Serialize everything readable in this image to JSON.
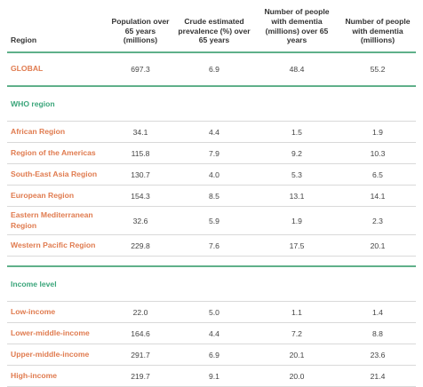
{
  "table": {
    "headers": [
      "Region",
      "Population over 65 years (millions)",
      "Crude estimated prevalence (%) over 65 years",
      "Number of people with dementia (millions) over 65 years",
      "Number of people with dementia (millions)"
    ],
    "global": {
      "label": "GLOBAL",
      "values": [
        "697.3",
        "6.9",
        "48.4",
        "55.2"
      ]
    },
    "who_section": {
      "title": "WHO region",
      "rows": [
        {
          "label": "African Region",
          "values": [
            "34.1",
            "4.4",
            "1.5",
            "1.9"
          ]
        },
        {
          "label": "Region of the Americas",
          "values": [
            "115.8",
            "7.9",
            "9.2",
            "10.3"
          ]
        },
        {
          "label": "South-East Asia Region",
          "values": [
            "130.7",
            "4.0",
            "5.3",
            "6.5"
          ]
        },
        {
          "label": "European Region",
          "values": [
            "154.3",
            "8.5",
            "13.1",
            "14.1"
          ]
        },
        {
          "label": "Eastern Mediterranean Region",
          "values": [
            "32.6",
            "5.9",
            "1.9",
            "2.3"
          ]
        },
        {
          "label": "Western Pacific Region",
          "values": [
            "229.8",
            "7.6",
            "17.5",
            "20.1"
          ]
        }
      ]
    },
    "income_section": {
      "title": "Income level",
      "rows": [
        {
          "label": "Low-income",
          "values": [
            "22.0",
            "5.0",
            "1.1",
            "1.4"
          ]
        },
        {
          "label": "Lower-middle-income",
          "values": [
            "164.6",
            "4.4",
            "7.2",
            "8.8"
          ]
        },
        {
          "label": "Upper-middle-income",
          "values": [
            "291.7",
            "6.9",
            "20.1",
            "23.6"
          ]
        },
        {
          "label": "High-income",
          "values": [
            "219.7",
            "9.1",
            "20.0",
            "21.4"
          ]
        }
      ]
    }
  },
  "colors": {
    "label_orange": "#e07b4f",
    "section_green": "#3aa57a",
    "rule_green": "#5fb08a"
  }
}
